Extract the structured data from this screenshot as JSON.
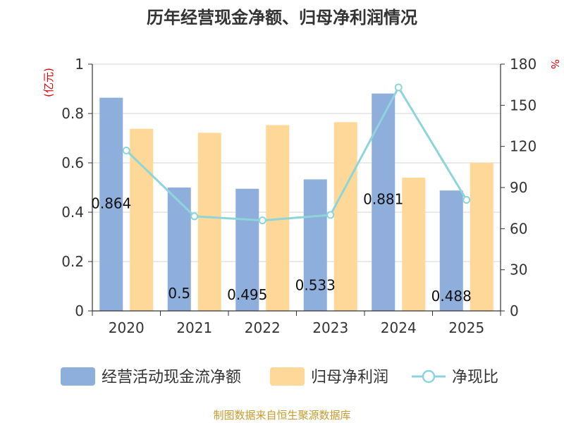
{
  "chart_data": {
    "type": "bar",
    "title": "历年经营现金净额、归母净利润情况",
    "categories": [
      "2020",
      "2021",
      "2022",
      "2023",
      "2024",
      "2025"
    ],
    "series": [
      {
        "name": "经营活动现金流净额",
        "type": "bar",
        "axis": "left",
        "color": "#8eaedc",
        "values": [
          0.864,
          0.5,
          0.495,
          0.533,
          0.881,
          0.488
        ],
        "data_labels": [
          "0.864",
          "0.5",
          "0.495",
          "0.533",
          "0.881",
          "0.488"
        ]
      },
      {
        "name": "归母净利润",
        "type": "bar",
        "axis": "left",
        "color": "#fdd898",
        "values": [
          0.738,
          0.722,
          0.753,
          0.765,
          0.54,
          0.6
        ]
      },
      {
        "name": "净现比",
        "type": "line",
        "axis": "right",
        "color": "#8dd5da",
        "values": [
          117,
          69,
          66,
          70,
          163,
          81
        ]
      }
    ],
    "y_left": {
      "unit_label": "(亿元)",
      "ylim": [
        0,
        1
      ],
      "ticks": [
        "0",
        "0.2",
        "0.4",
        "0.6",
        "0.8",
        "1"
      ],
      "tick_values": [
        0,
        0.2,
        0.4,
        0.6,
        0.8,
        1
      ]
    },
    "y_right": {
      "unit_label": "%",
      "ylim": [
        0,
        180
      ],
      "ticks": [
        "0",
        "30",
        "60",
        "90",
        "120",
        "150",
        "180"
      ],
      "tick_values": [
        0,
        30,
        60,
        90,
        120,
        150,
        180
      ]
    },
    "grid": true,
    "legend_position": "bottom"
  },
  "source": "制图数据来自恒生聚源数据库"
}
